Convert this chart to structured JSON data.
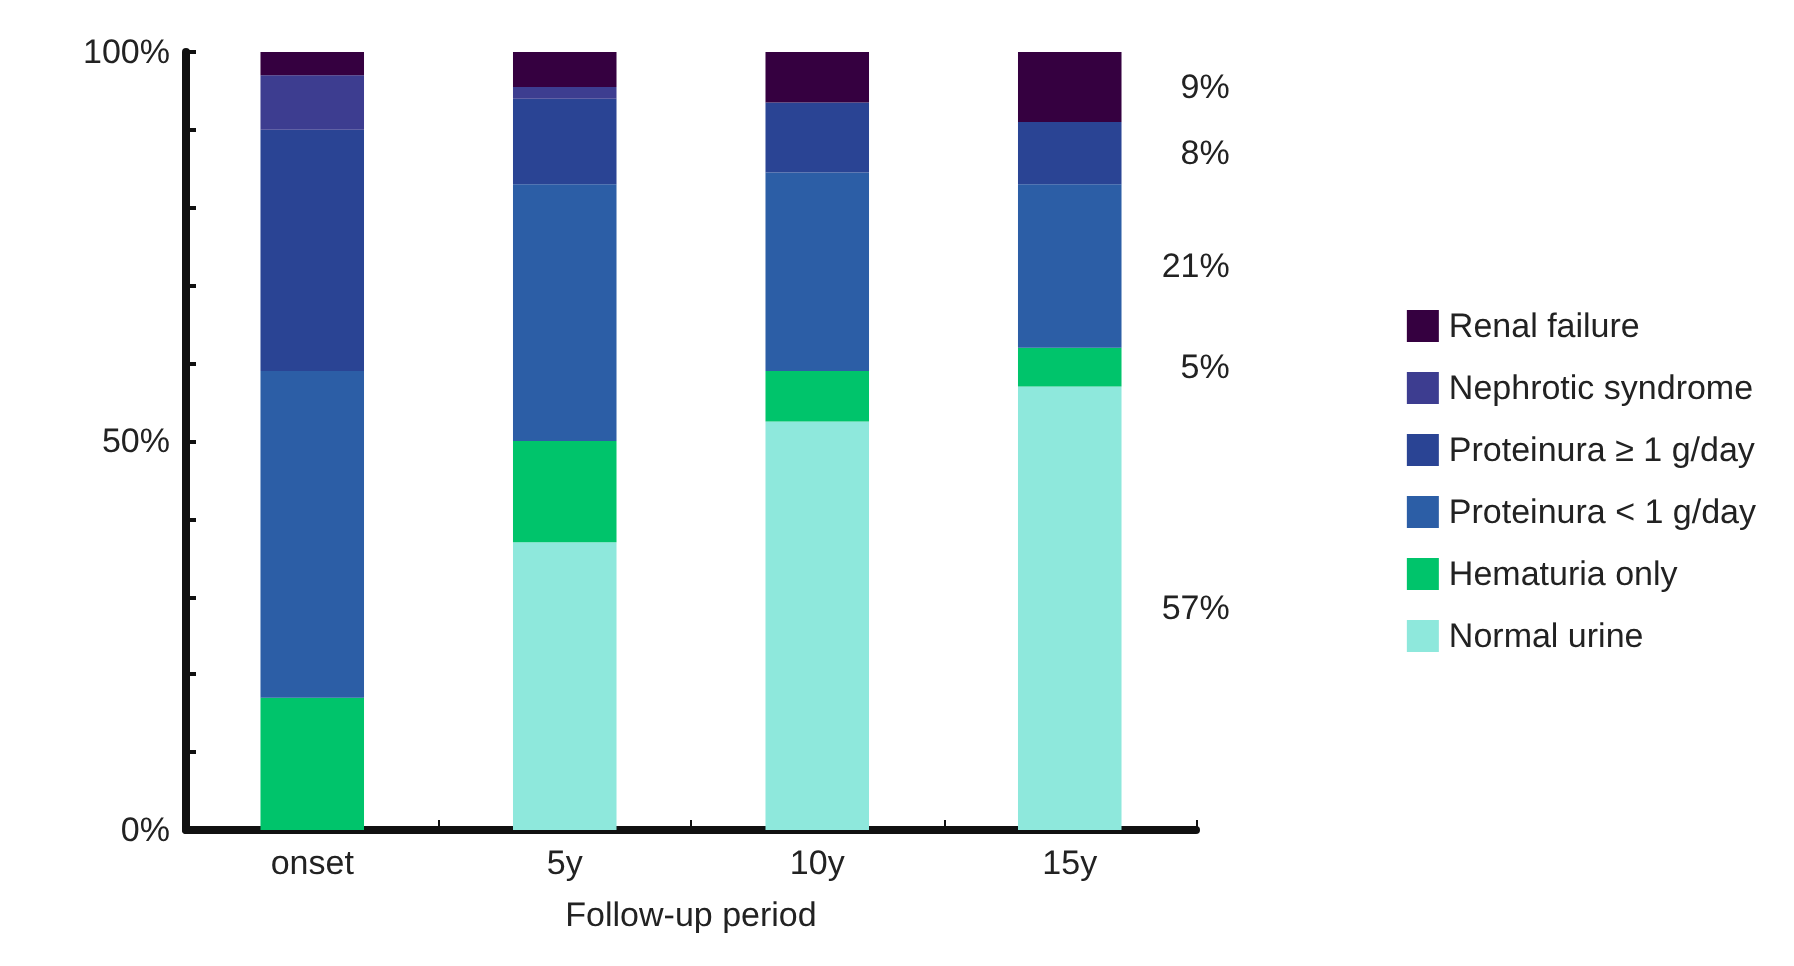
{
  "chart_data": {
    "type": "bar",
    "stacked": true,
    "xlabel": "Follow-up period",
    "categories": [
      "onset",
      "5y",
      "10y",
      "15y"
    ],
    "series": [
      {
        "name": "Normal urine",
        "color": "#8ee8dc",
        "values": [
          0,
          37,
          52.5,
          57
        ]
      },
      {
        "name": "Hematuria only",
        "color": "#00c46b",
        "values": [
          17,
          13,
          6.5,
          5
        ]
      },
      {
        "name": "Proteinura < 1 g/day",
        "color": "#2c5ea6",
        "values": [
          42,
          33,
          25.5,
          21
        ]
      },
      {
        "name": "Proteinura ≥ 1 g/day",
        "color": "#2a4494",
        "values": [
          31,
          11,
          9,
          8
        ]
      },
      {
        "name": "Nephrotic syndrome",
        "color": "#3d3d90",
        "values": [
          7,
          1.5,
          0,
          0
        ]
      },
      {
        "name": "Renal failure",
        "color": "#350040",
        "values": [
          3,
          4.5,
          6.5,
          9
        ]
      }
    ],
    "ylim": [
      0,
      100
    ],
    "yticks": [
      {
        "value": 0,
        "label": "0%"
      },
      {
        "value": 10,
        "label": null
      },
      {
        "value": 20,
        "label": null
      },
      {
        "value": 30,
        "label": null
      },
      {
        "value": 40,
        "label": null
      },
      {
        "value": 50,
        "label": "50%"
      },
      {
        "value": 60,
        "label": null
      },
      {
        "value": 70,
        "label": null
      },
      {
        "value": 80,
        "label": null
      },
      {
        "value": 90,
        "label": null
      },
      {
        "value": 100,
        "label": "100%"
      }
    ],
    "annotations": [
      "9%",
      "8%",
      "21%",
      "5%",
      "57%"
    ],
    "grid": false,
    "legend": "right"
  }
}
